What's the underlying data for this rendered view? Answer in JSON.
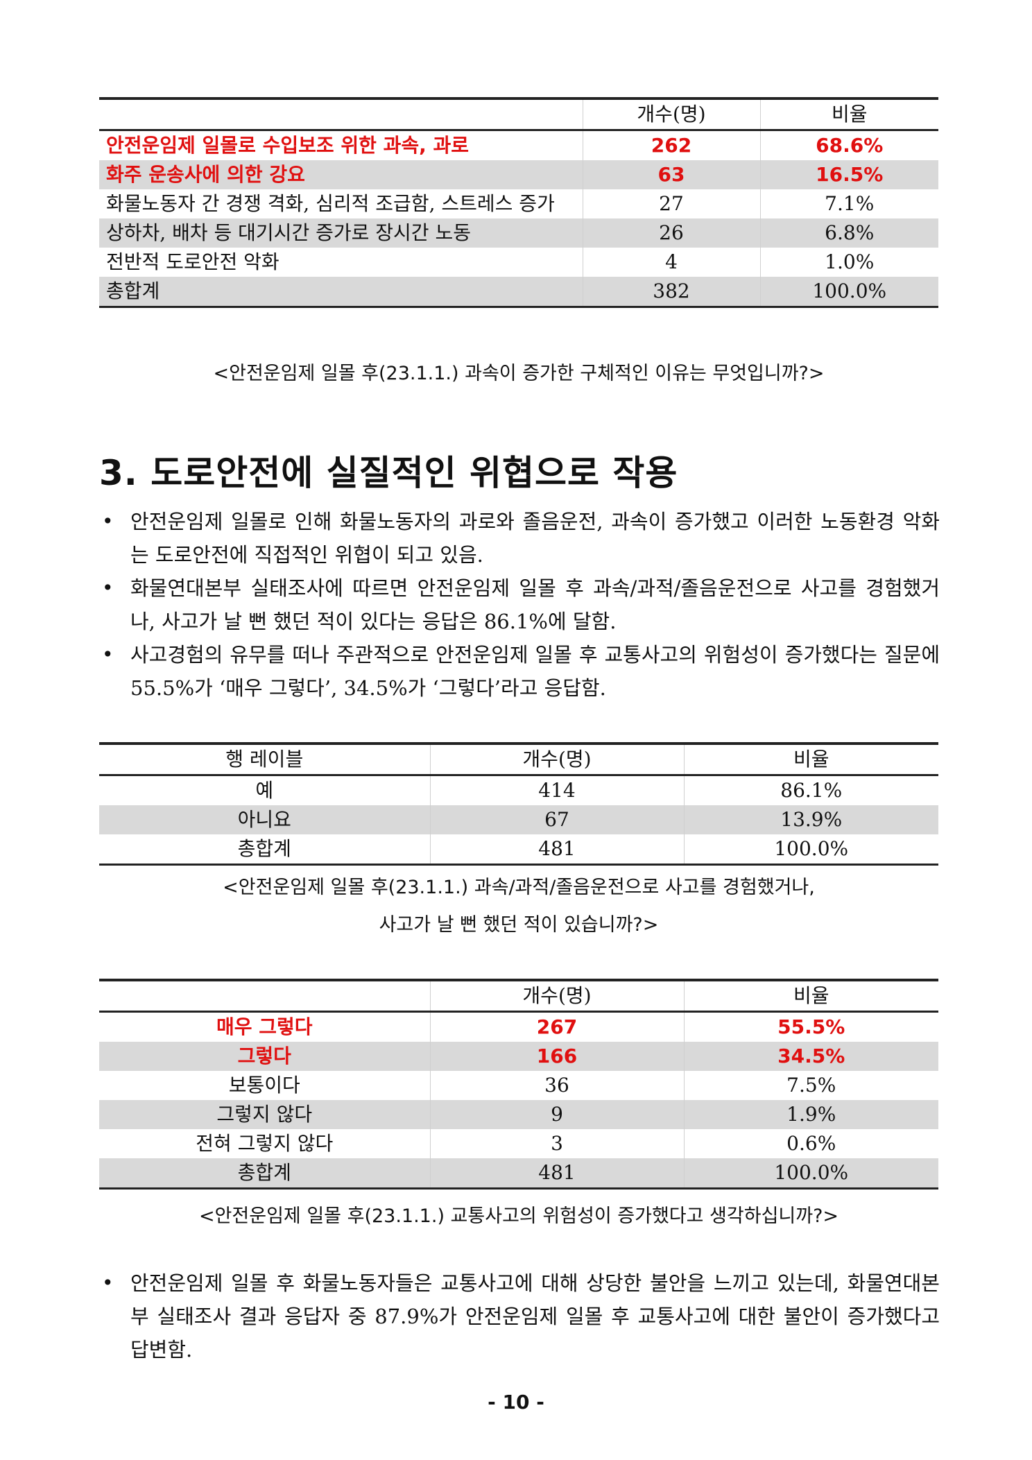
{
  "table1": {
    "headers": [
      "",
      "개수(명)",
      "비율"
    ],
    "rows": [
      {
        "label": "안전운임제 일몰로 수입보조 위한 과속, 과로",
        "count": "262",
        "ratio": "68.6%"
      },
      {
        "label": "화주 운송사에 의한 강요",
        "count": "63",
        "ratio": "16.5%"
      },
      {
        "label": "화물노동자 간 경쟁 격화, 심리적 조급함, 스트레스 증가",
        "count": "27",
        "ratio": "7.1%"
      },
      {
        "label": "상하차, 배차 등 대기시간 증가로 장시간 노동",
        "count": "26",
        "ratio": "6.8%"
      },
      {
        "label": "전반적 도로안전 악화",
        "count": "4",
        "ratio": "1.0%"
      },
      {
        "label": "총합계",
        "count": "382",
        "ratio": "100.0%"
      }
    ],
    "caption": "<안전운임제 일몰 후(23.1.1.) 과속이 증가한 구체적인 이유는 무엇입니까?>"
  },
  "section": {
    "title": "3. 도로안전에 실질적인 위협으로 작용",
    "bullets": [
      "안전운임제 일몰로 인해 화물노동자의 과로와 졸음운전, 과속이 증가했고 이러한 노동환경 악화는 도로안전에 직접적인 위협이 되고 있음.",
      "화물연대본부 실태조사에 따르면 안전운임제 일몰 후 과속/과적/졸음운전으로 사고를 경험했거나, 사고가 날 뻔 했던 적이 있다는 응답은 86.1%에 달함.",
      "사고경험의 유무를 떠나 주관적으로 안전운임제 일몰 후 교통사고의 위험성이 증가했다는 질문에 55.5%가 ‘매우 그렇다’, 34.5%가 ‘그렇다’라고 응답함."
    ]
  },
  "table2": {
    "headers": [
      "행 레이블",
      "개수(명)",
      "비율"
    ],
    "rows": [
      {
        "label": "예",
        "count": "414",
        "ratio": "86.1%"
      },
      {
        "label": "아니요",
        "count": "67",
        "ratio": "13.9%"
      },
      {
        "label": "총합계",
        "count": "481",
        "ratio": "100.0%"
      }
    ],
    "caption_line1": "<안전운임제 일몰 후(23.1.1.) 과속/과적/졸음운전으로 사고를 경험했거나,",
    "caption_line2": "사고가 날 뻔 했던 적이 있습니까?>"
  },
  "table3": {
    "headers": [
      "",
      "개수(명)",
      "비율"
    ],
    "rows": [
      {
        "label": "매우 그렇다",
        "count": "267",
        "ratio": "55.5%"
      },
      {
        "label": "그렇다",
        "count": "166",
        "ratio": "34.5%"
      },
      {
        "label": "보통이다",
        "count": "36",
        "ratio": "7.5%"
      },
      {
        "label": "그렇지 않다",
        "count": "9",
        "ratio": "1.9%"
      },
      {
        "label": "전혀 그렇지 않다",
        "count": "3",
        "ratio": "0.6%"
      },
      {
        "label": "총합계",
        "count": "481",
        "ratio": "100.0%"
      }
    ],
    "caption": "<안전운임제 일몰 후(23.1.1.) 교통사고의 위험성이 증가했다고 생각하십니까?>"
  },
  "final_bullets": [
    "안전운임제 일몰 후 화물노동자들은 교통사고에 대해 상당한 불안을 느끼고 있는데, 화물연대본부 실태조사 결과 응답자 중 87.9%가 안전운임제 일몰 후 교통사고에 대한 불안이 증가했다고 답변함."
  ],
  "page_number": "- 10 -",
  "colors": {
    "highlight": "#e01010",
    "row_shade": "#d9d9d9"
  }
}
